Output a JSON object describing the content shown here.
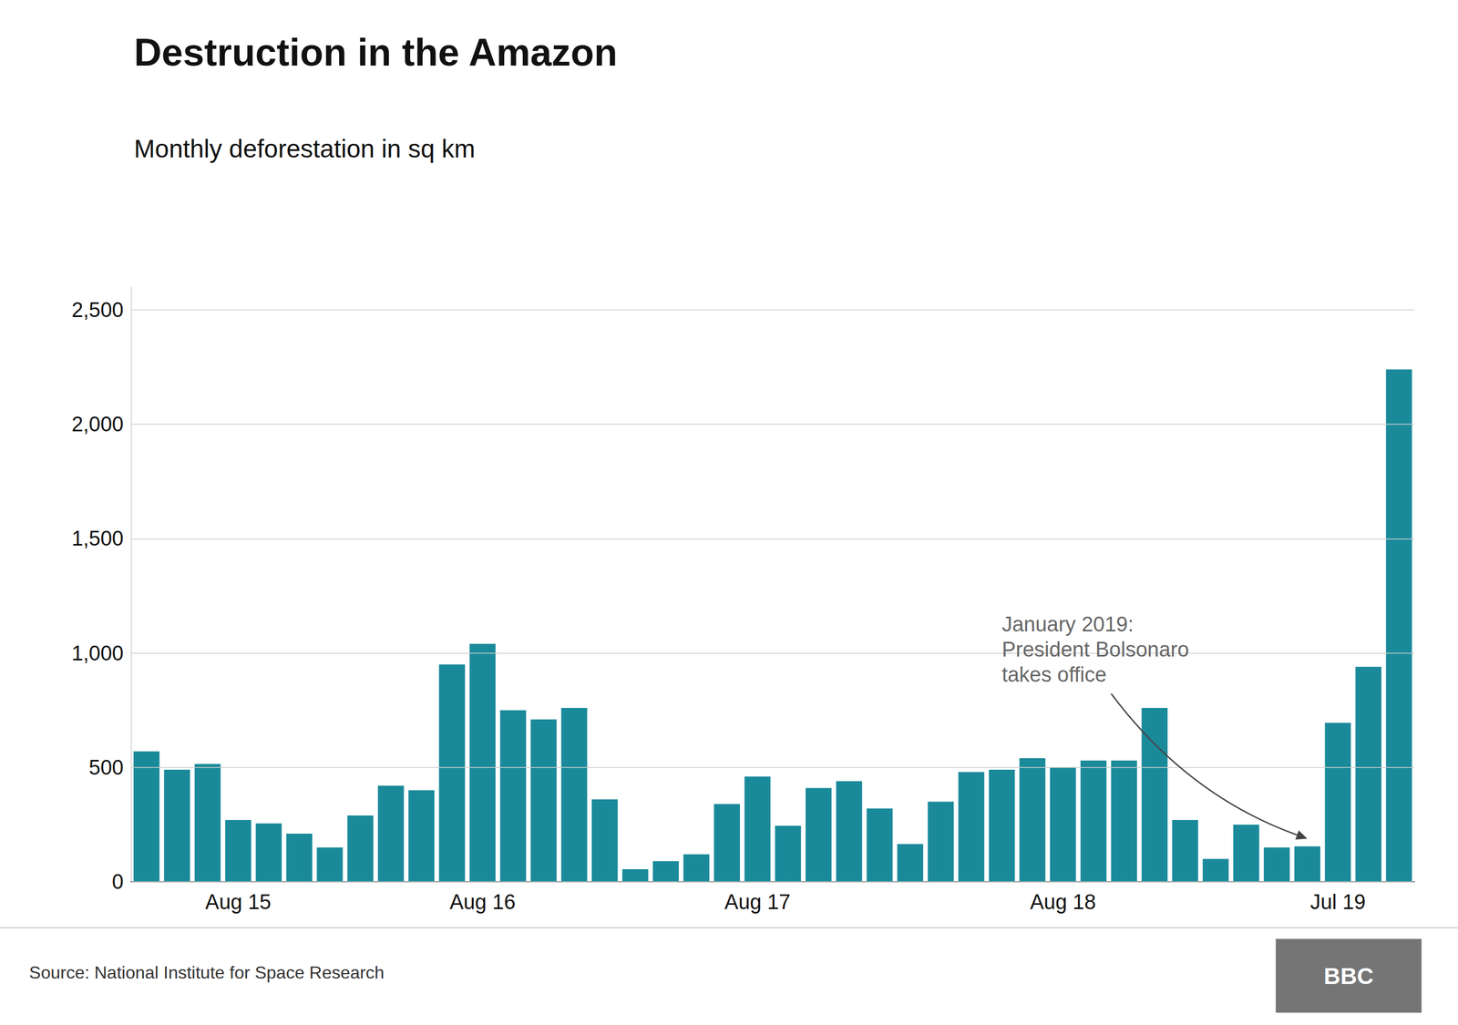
{
  "chart_data": {
    "type": "bar",
    "title": "Destruction in the Amazon",
    "subtitle": "Monthly deforestation in sq km",
    "categories": [
      null,
      null,
      null,
      "Aug 15",
      null,
      null,
      null,
      null,
      null,
      null,
      null,
      "Aug 16",
      null,
      null,
      null,
      null,
      null,
      null,
      null,
      null,
      "Aug 17",
      null,
      null,
      null,
      null,
      null,
      null,
      null,
      null,
      null,
      "Aug 18",
      null,
      null,
      null,
      null,
      null,
      null,
      null,
      null,
      "Jul 19",
      null,
      null
    ],
    "values": [
      570,
      490,
      515,
      270,
      255,
      210,
      150,
      290,
      420,
      400,
      950,
      1040,
      750,
      710,
      760,
      360,
      55,
      90,
      120,
      340,
      460,
      245,
      410,
      440,
      320,
      165,
      350,
      480,
      490,
      540,
      500,
      530,
      530,
      760,
      270,
      100,
      250,
      150,
      155,
      695,
      940,
      2240
    ],
    "color": "#1a8a9a",
    "ylim": [
      0,
      2600
    ],
    "yticks": [
      0,
      500,
      {
        "value": 1000,
        "label": "1,000"
      },
      {
        "value": 1500,
        "label": "1,500"
      },
      {
        "value": 2000,
        "label": "2,000"
      },
      {
        "value": 2500,
        "label": "2,500"
      }
    ],
    "grid": true,
    "annotation": "January 2019:\nPresident Bolsonaro\ntakes office",
    "source": "Source: National Institute for Space Research",
    "logo": "BBC"
  }
}
